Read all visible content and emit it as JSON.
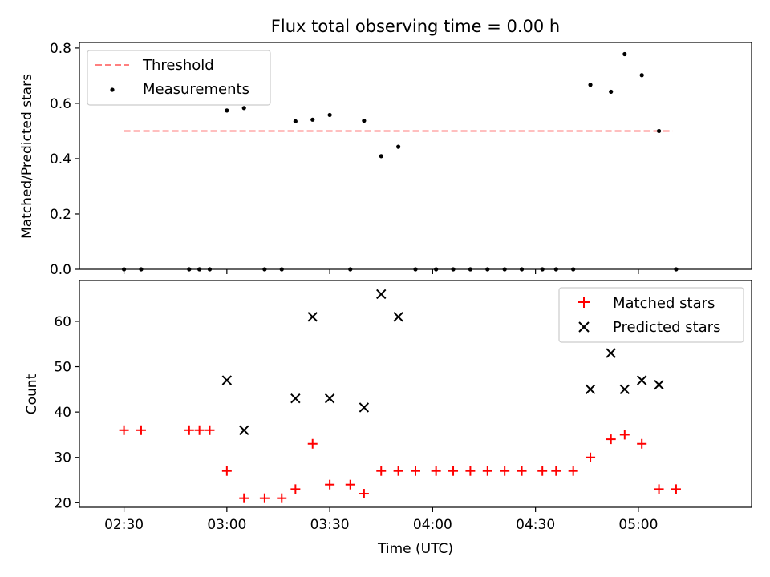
{
  "chart_data": [
    {
      "type": "scatter",
      "title": "Flux total observing time = 0.00 h",
      "xlabel": "",
      "ylabel": "Matched/Predicted stars",
      "ylim": [
        0,
        0.82
      ],
      "yticks": [
        0.0,
        0.2,
        0.4,
        0.6,
        0.8
      ],
      "ytick_labels": [
        "0.0",
        "0.2",
        "0.4",
        "0.6",
        "0.8"
      ],
      "xlim": [
        "02:17",
        "05:33"
      ],
      "xticks": [
        "02:30",
        "03:00",
        "03:30",
        "04:00",
        "04:30",
        "05:00"
      ],
      "show_xtick_labels": false,
      "legend_position": "top-left",
      "series": [
        {
          "name": "Threshold",
          "kind": "dashed-line",
          "color": "#ff7f7f",
          "x": [
            "02:30",
            "05:10"
          ],
          "y": [
            0.5,
            0.5
          ]
        },
        {
          "name": "Measurements",
          "kind": "dot",
          "color": "#000000",
          "x": [
            "02:30",
            "02:35",
            "02:49",
            "02:52",
            "02:55",
            "03:00",
            "03:05",
            "03:11",
            "03:16",
            "03:20",
            "03:25",
            "03:30",
            "03:36",
            "03:40",
            "03:45",
            "03:50",
            "03:55",
            "04:01",
            "04:06",
            "04:11",
            "04:16",
            "04:21",
            "04:26",
            "04:32",
            "04:36",
            "04:41",
            "04:46",
            "04:52",
            "04:56",
            "05:01",
            "05:06",
            "05:11"
          ],
          "y": [
            0,
            0,
            0,
            0,
            0,
            0.574,
            0.583,
            0,
            0,
            0.535,
            0.541,
            0.558,
            0,
            0.537,
            0.409,
            0.443,
            0,
            0,
            0,
            0,
            0,
            0,
            0,
            0,
            0,
            0,
            0.667,
            0.642,
            0.778,
            0.702,
            0.5,
            0
          ]
        }
      ]
    },
    {
      "type": "scatter",
      "title": "",
      "xlabel": "Time (UTC)",
      "ylabel": "Count",
      "ylim": [
        19,
        69
      ],
      "yticks": [
        20,
        30,
        40,
        50,
        60
      ],
      "ytick_labels": [
        "20",
        "30",
        "40",
        "50",
        "60"
      ],
      "xlim": [
        "02:17",
        "05:33"
      ],
      "xticks": [
        "02:30",
        "03:00",
        "03:30",
        "04:00",
        "04:30",
        "05:00"
      ],
      "show_xtick_labels": true,
      "legend_position": "top-right",
      "series": [
        {
          "name": "Matched stars",
          "kind": "plus",
          "color": "#ff0000",
          "x": [
            "02:30",
            "02:35",
            "02:49",
            "02:52",
            "02:55",
            "03:00",
            "03:05",
            "03:11",
            "03:16",
            "03:20",
            "03:25",
            "03:30",
            "03:36",
            "03:40",
            "03:45",
            "03:50",
            "03:55",
            "04:01",
            "04:06",
            "04:11",
            "04:16",
            "04:21",
            "04:26",
            "04:32",
            "04:36",
            "04:41",
            "04:46",
            "04:52",
            "04:56",
            "05:01",
            "05:06",
            "05:11"
          ],
          "y": [
            36,
            36,
            36,
            36,
            36,
            27,
            21,
            21,
            21,
            23,
            33,
            24,
            24,
            22,
            27,
            27,
            27,
            27,
            27,
            27,
            27,
            27,
            27,
            27,
            27,
            27,
            30,
            34,
            35,
            33,
            23,
            23
          ]
        },
        {
          "name": "Predicted stars",
          "kind": "cross",
          "color": "#000000",
          "x": [
            "03:00",
            "03:05",
            "03:20",
            "03:25",
            "03:30",
            "03:40",
            "03:45",
            "03:50",
            "04:46",
            "04:52",
            "04:56",
            "05:01",
            "05:06"
          ],
          "y": [
            47,
            36,
            43,
            61,
            43,
            41,
            66,
            61,
            45,
            53,
            45,
            47,
            46
          ]
        }
      ]
    }
  ]
}
